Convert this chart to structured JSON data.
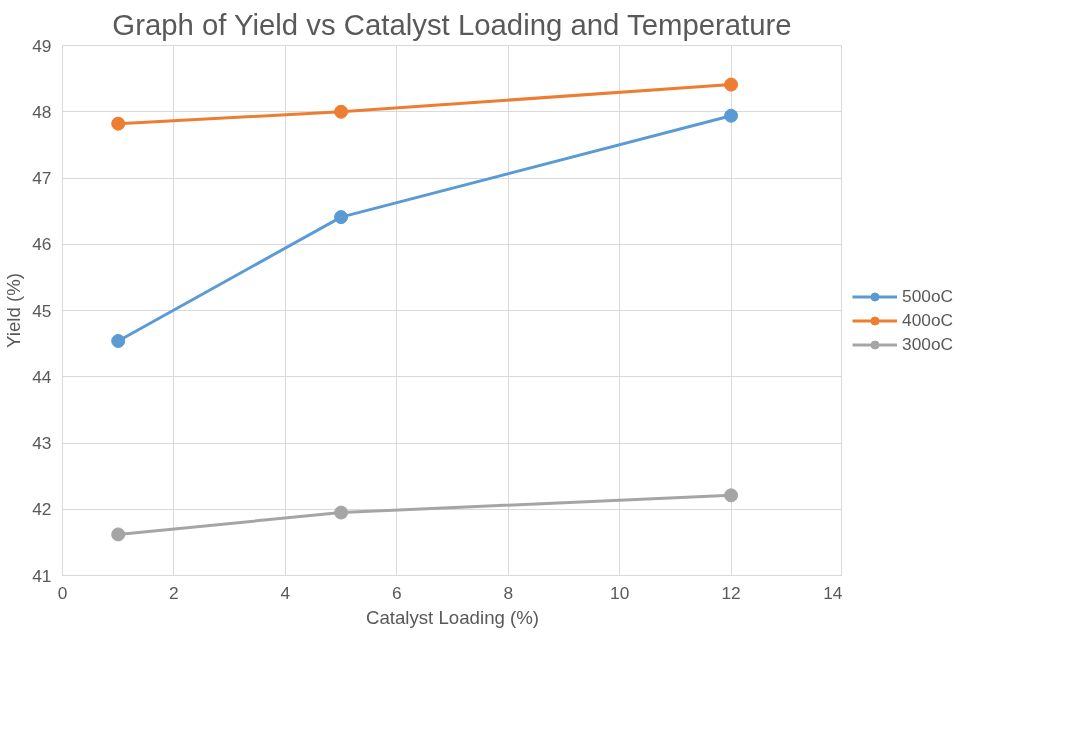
{
  "chart_data": {
    "type": "line",
    "title": "Graph of Yield vs Catalyst Loading and Temperature",
    "xlabel": "Catalyst Loading (%)",
    "ylabel": "Yield (%)",
    "x": [
      1,
      5,
      12
    ],
    "series": [
      {
        "name": "500oC",
        "color": "#5b9bd5",
        "values": [
          44.54,
          46.41,
          47.94
        ]
      },
      {
        "name": "400oC",
        "color": "#ed7d31",
        "values": [
          47.82,
          48.0,
          48.41
        ]
      },
      {
        "name": "300oC",
        "color": "#a5a5a5",
        "values": [
          41.62,
          41.95,
          42.21
        ]
      }
    ],
    "xlim": [
      0,
      14
    ],
    "xticks": [
      0,
      2,
      4,
      6,
      8,
      10,
      12,
      14
    ],
    "ylim": [
      41,
      49
    ],
    "yticks": [
      41,
      42,
      43,
      44,
      45,
      46,
      47,
      48,
      49
    ],
    "grid": true,
    "legend": "right",
    "marker": "circle",
    "line_style": "solid"
  }
}
